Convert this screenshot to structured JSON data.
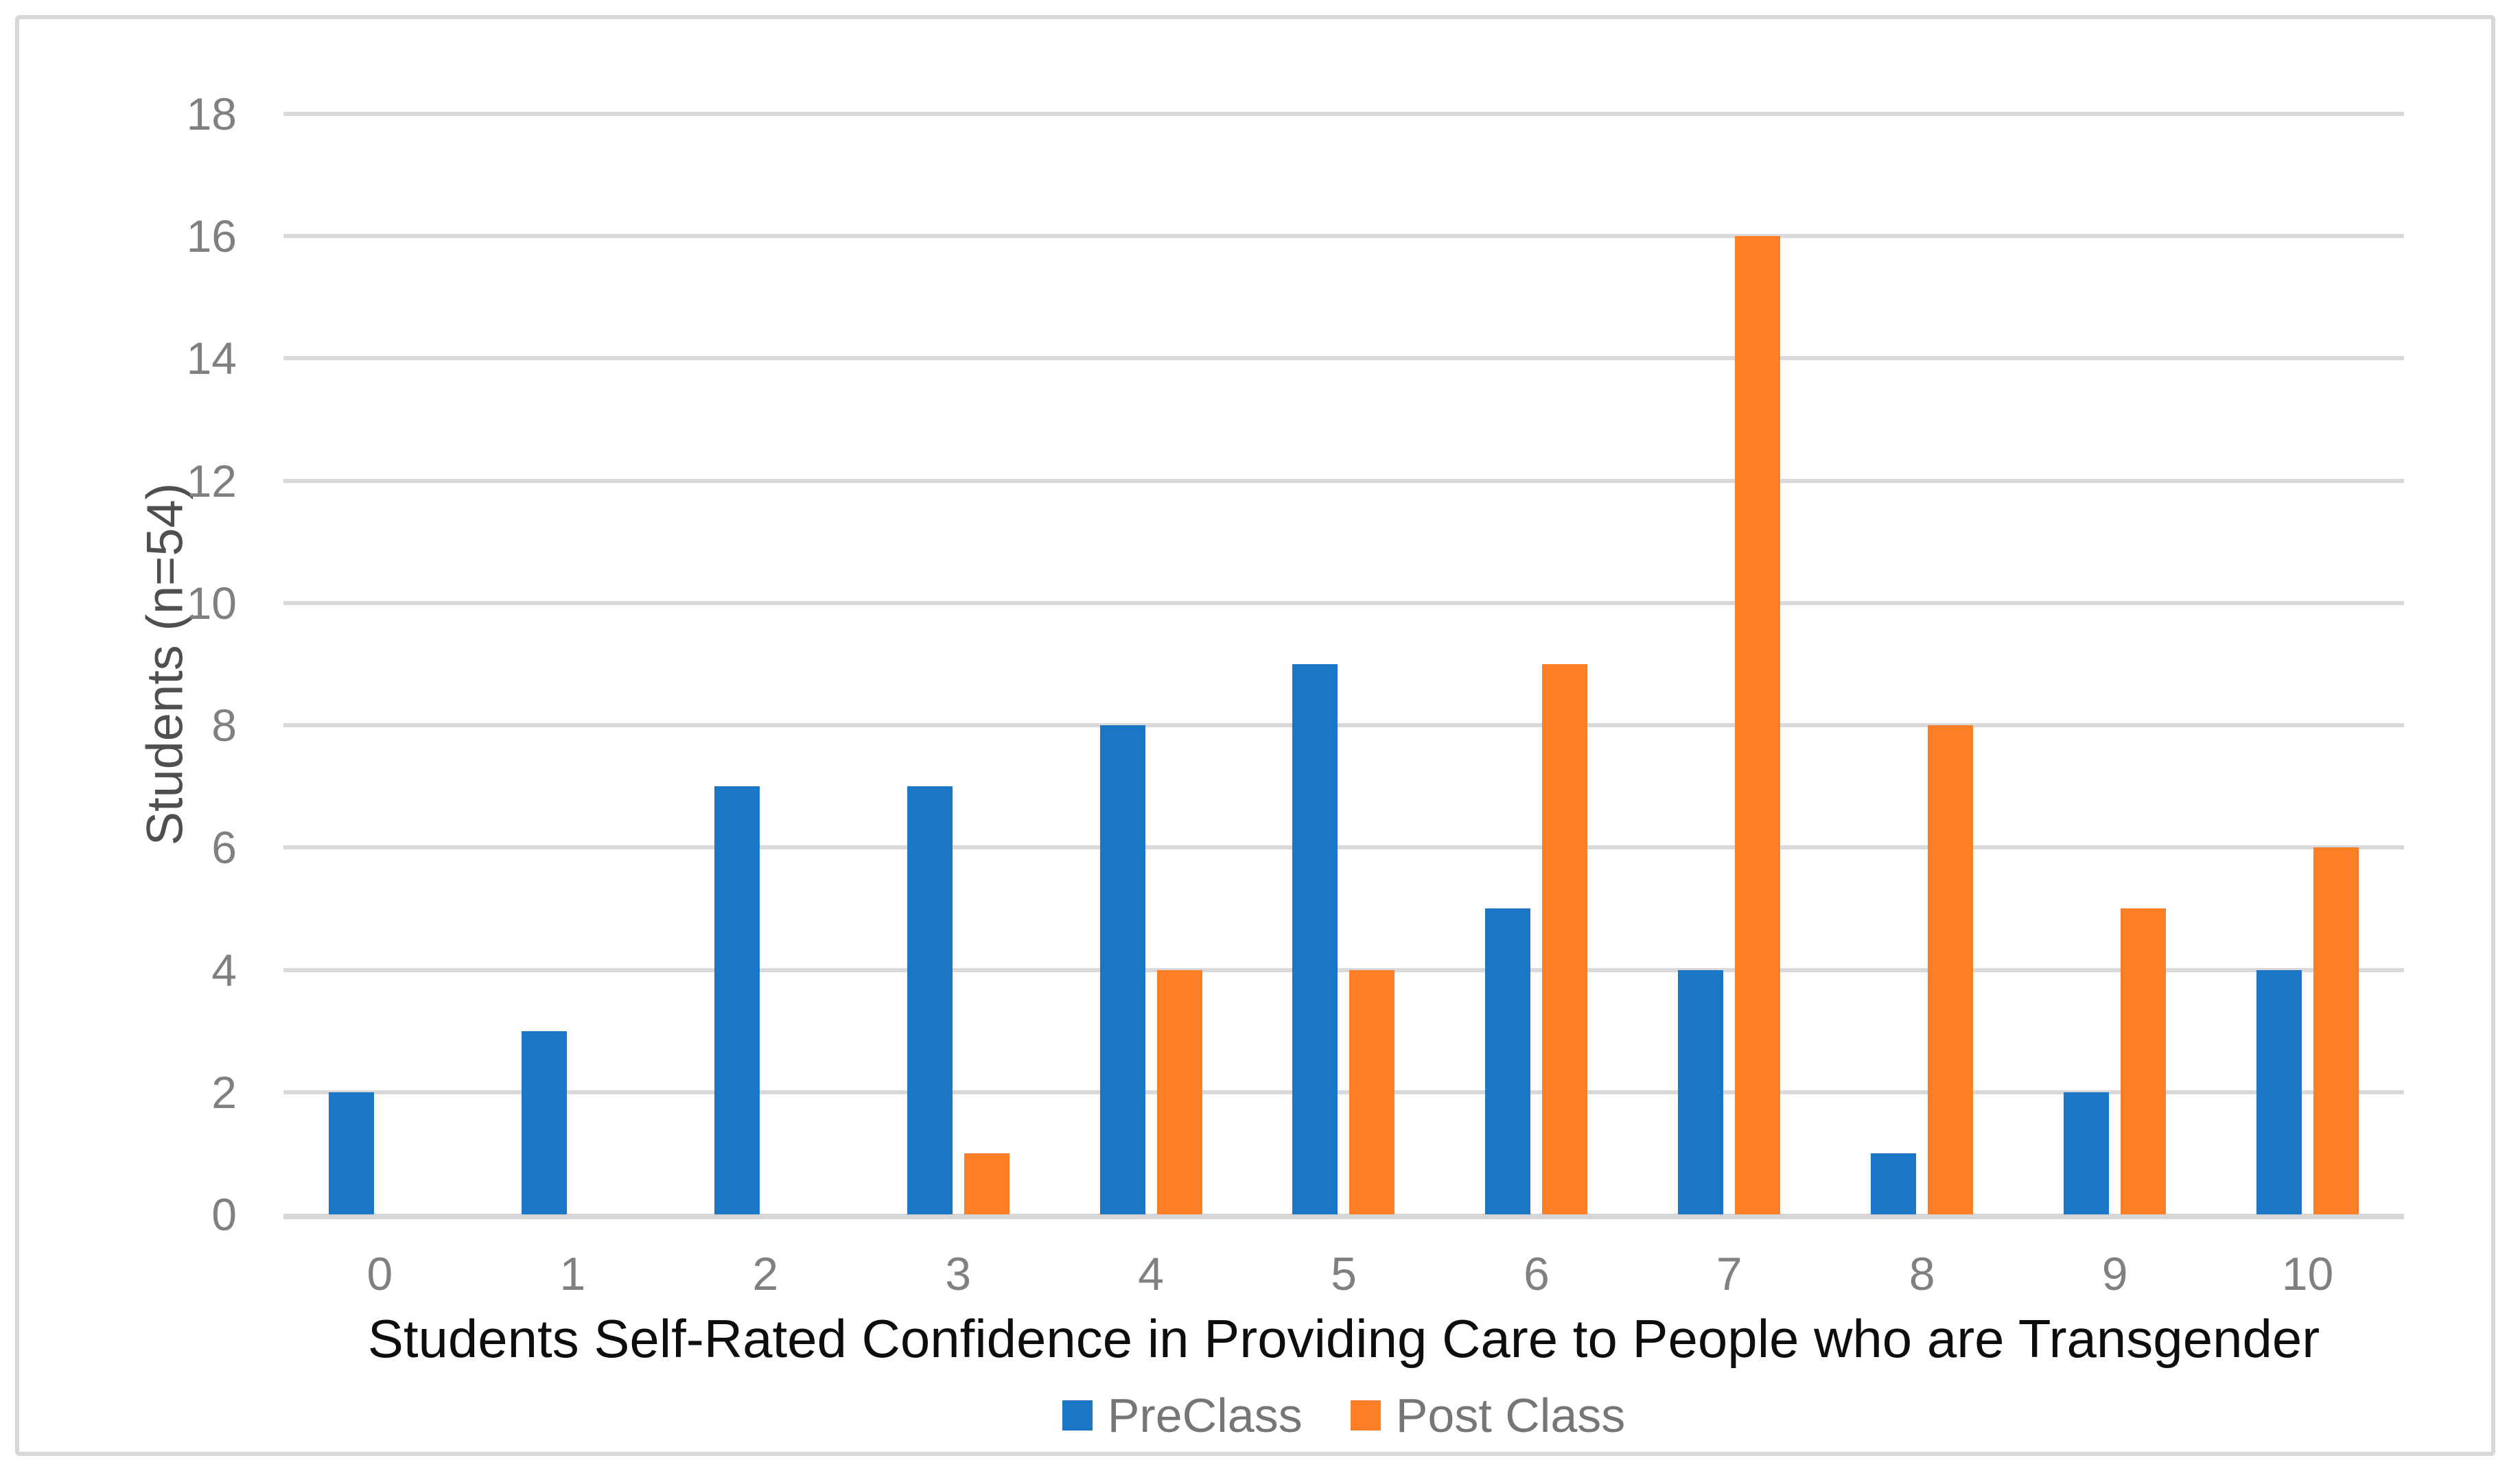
{
  "chart_data": {
    "type": "bar",
    "title": "",
    "categories": [
      "0",
      "1",
      "2",
      "3",
      "4",
      "5",
      "6",
      "7",
      "8",
      "9",
      "10"
    ],
    "series": [
      {
        "name": "PreClass",
        "color": "#1B76C6",
        "values": [
          2,
          3,
          7,
          7,
          8,
          9,
          5,
          4,
          1,
          2,
          4
        ]
      },
      {
        "name": "Post Class",
        "color": "#FC7E25",
        "values": [
          0,
          0,
          0,
          1,
          4,
          4,
          9,
          16,
          8,
          5,
          6
        ]
      }
    ],
    "xlabel": "Students Self-Rated Confidence in Providing Care to People who are Transgender",
    "ylabel": "Students (n=54)",
    "ylim": [
      0,
      18
    ],
    "yticks": [
      0,
      2,
      4,
      6,
      8,
      10,
      12,
      14,
      16,
      18
    ],
    "grid": "horizontal",
    "legend_position": "bottom",
    "style": {
      "gridline_color": "#D9D9D9",
      "axis_line_color": "#D6D6D6",
      "tick_label_color": "#808080",
      "x_axis_title_color": "#0D0D0D",
      "y_axis_title_color": "#4F4F4F",
      "legend_text_color": "#767676",
      "frame_border_color": "#D7D7D7",
      "background_color": "#FFFFFF"
    }
  }
}
